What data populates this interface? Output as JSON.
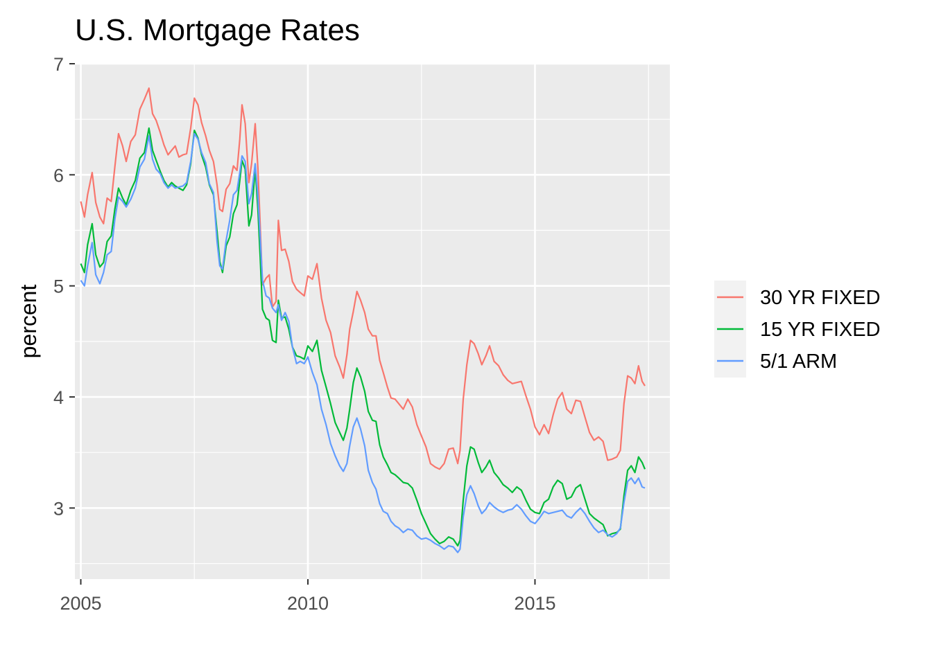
{
  "chart_data": {
    "type": "line",
    "title": "U.S. Mortgage Rates",
    "xlabel": "",
    "ylabel": "percent",
    "xlim": [
      2004.87,
      2017.97
    ],
    "ylim": [
      2.36,
      7.0
    ],
    "grid": true,
    "legend_position": "right",
    "x_ticks": [
      2005,
      2010,
      2015
    ],
    "x_tick_labels": [
      "2005",
      "2010",
      "2015"
    ],
    "y_ticks": [
      3,
      4,
      5,
      6,
      7
    ],
    "y_tick_labels": [
      "3",
      "4",
      "5",
      "6",
      "7"
    ],
    "series": [
      {
        "name": "30 YR FIXED",
        "color": "#F8766D",
        "x": [
          2005.0,
          2005.08,
          2005.15,
          2005.25,
          2005.33,
          2005.42,
          2005.5,
          2005.58,
          2005.67,
          2005.75,
          2005.83,
          2005.92,
          2006.0,
          2006.1,
          2006.2,
          2006.3,
          2006.4,
          2006.5,
          2006.58,
          2006.66,
          2006.75,
          2006.83,
          2006.92,
          2007.0,
          2007.08,
          2007.16,
          2007.25,
          2007.33,
          2007.42,
          2007.5,
          2007.58,
          2007.66,
          2007.75,
          2007.83,
          2007.92,
          2008.0,
          2008.06,
          2008.12,
          2008.2,
          2008.28,
          2008.36,
          2008.44,
          2008.5,
          2008.55,
          2008.62,
          2008.7,
          2008.76,
          2008.84,
          2008.9,
          2008.95,
          2009.0,
          2009.08,
          2009.15,
          2009.22,
          2009.3,
          2009.35,
          2009.42,
          2009.5,
          2009.58,
          2009.66,
          2009.75,
          2009.83,
          2009.92,
          2010.0,
          2010.1,
          2010.2,
          2010.3,
          2010.4,
          2010.5,
          2010.6,
          2010.7,
          2010.78,
          2010.86,
          2010.92,
          2011.0,
          2011.08,
          2011.16,
          2011.25,
          2011.33,
          2011.42,
          2011.5,
          2011.58,
          2011.66,
          2011.75,
          2011.83,
          2011.92,
          2012.0,
          2012.1,
          2012.2,
          2012.3,
          2012.4,
          2012.5,
          2012.6,
          2012.7,
          2012.8,
          2012.9,
          2013.0,
          2013.1,
          2013.2,
          2013.3,
          2013.35,
          2013.42,
          2013.5,
          2013.58,
          2013.66,
          2013.75,
          2013.83,
          2013.92,
          2014.0,
          2014.1,
          2014.2,
          2014.3,
          2014.4,
          2014.5,
          2014.6,
          2014.7,
          2014.8,
          2014.9,
          2015.0,
          2015.1,
          2015.2,
          2015.3,
          2015.4,
          2015.5,
          2015.6,
          2015.7,
          2015.8,
          2015.9,
          2016.0,
          2016.1,
          2016.2,
          2016.3,
          2016.4,
          2016.5,
          2016.6,
          2016.7,
          2016.8,
          2016.88,
          2016.96,
          2017.04,
          2017.12,
          2017.2,
          2017.28,
          2017.36,
          2017.42
        ],
        "y": [
          5.76,
          5.62,
          5.82,
          6.02,
          5.75,
          5.62,
          5.56,
          5.79,
          5.76,
          6.07,
          6.37,
          6.26,
          6.12,
          6.3,
          6.36,
          6.59,
          6.68,
          6.78,
          6.55,
          6.49,
          6.38,
          6.27,
          6.18,
          6.22,
          6.26,
          6.16,
          6.18,
          6.19,
          6.42,
          6.69,
          6.63,
          6.47,
          6.35,
          6.22,
          6.12,
          5.91,
          5.69,
          5.67,
          5.87,
          5.92,
          6.08,
          6.04,
          6.32,
          6.63,
          6.46,
          5.93,
          6.1,
          6.46,
          6.06,
          5.55,
          5.01,
          5.07,
          5.1,
          4.81,
          4.86,
          5.59,
          5.32,
          5.33,
          5.22,
          5.04,
          4.97,
          4.94,
          4.91,
          5.09,
          5.06,
          5.2,
          4.89,
          4.69,
          4.58,
          4.37,
          4.27,
          4.17,
          4.38,
          4.61,
          4.77,
          4.95,
          4.87,
          4.76,
          4.61,
          4.55,
          4.55,
          4.33,
          4.22,
          4.09,
          3.99,
          3.98,
          3.94,
          3.89,
          3.98,
          3.91,
          3.75,
          3.65,
          3.55,
          3.4,
          3.37,
          3.35,
          3.4,
          3.53,
          3.54,
          3.4,
          3.52,
          3.98,
          4.29,
          4.51,
          4.48,
          4.39,
          4.29,
          4.37,
          4.46,
          4.32,
          4.28,
          4.2,
          4.15,
          4.12,
          4.13,
          4.14,
          4.01,
          3.89,
          3.73,
          3.66,
          3.75,
          3.67,
          3.84,
          3.98,
          4.04,
          3.89,
          3.85,
          3.97,
          3.96,
          3.82,
          3.68,
          3.61,
          3.64,
          3.6,
          3.43,
          3.44,
          3.46,
          3.52,
          3.94,
          4.19,
          4.17,
          4.12,
          4.28,
          4.14,
          4.1
        ]
      },
      {
        "name": "15 YR FIXED",
        "color": "#00BA38",
        "x": [
          2005.0,
          2005.08,
          2005.15,
          2005.25,
          2005.33,
          2005.42,
          2005.5,
          2005.58,
          2005.67,
          2005.75,
          2005.83,
          2005.92,
          2006.0,
          2006.1,
          2006.2,
          2006.3,
          2006.4,
          2006.5,
          2006.58,
          2006.66,
          2006.75,
          2006.83,
          2006.92,
          2007.0,
          2007.08,
          2007.16,
          2007.25,
          2007.33,
          2007.42,
          2007.5,
          2007.58,
          2007.66,
          2007.75,
          2007.83,
          2007.92,
          2008.0,
          2008.06,
          2008.12,
          2008.2,
          2008.28,
          2008.36,
          2008.44,
          2008.5,
          2008.55,
          2008.62,
          2008.7,
          2008.76,
          2008.84,
          2008.9,
          2008.95,
          2009.0,
          2009.08,
          2009.15,
          2009.22,
          2009.3,
          2009.35,
          2009.42,
          2009.5,
          2009.58,
          2009.66,
          2009.75,
          2009.83,
          2009.92,
          2010.0,
          2010.1,
          2010.2,
          2010.3,
          2010.4,
          2010.5,
          2010.6,
          2010.7,
          2010.78,
          2010.86,
          2010.92,
          2011.0,
          2011.08,
          2011.16,
          2011.25,
          2011.33,
          2011.42,
          2011.5,
          2011.58,
          2011.66,
          2011.75,
          2011.83,
          2011.92,
          2012.0,
          2012.1,
          2012.2,
          2012.3,
          2012.4,
          2012.5,
          2012.6,
          2012.7,
          2012.8,
          2012.9,
          2013.0,
          2013.1,
          2013.2,
          2013.3,
          2013.35,
          2013.42,
          2013.5,
          2013.58,
          2013.66,
          2013.75,
          2013.83,
          2013.92,
          2014.0,
          2014.1,
          2014.2,
          2014.3,
          2014.4,
          2014.5,
          2014.6,
          2014.7,
          2014.8,
          2014.9,
          2015.0,
          2015.1,
          2015.2,
          2015.3,
          2015.4,
          2015.5,
          2015.6,
          2015.7,
          2015.8,
          2015.9,
          2016.0,
          2016.1,
          2016.2,
          2016.3,
          2016.4,
          2016.5,
          2016.6,
          2016.7,
          2016.8,
          2016.88,
          2016.96,
          2017.04,
          2017.12,
          2017.2,
          2017.28,
          2017.36,
          2017.42
        ],
        "y": [
          5.2,
          5.12,
          5.37,
          5.56,
          5.28,
          5.17,
          5.21,
          5.4,
          5.45,
          5.69,
          5.88,
          5.79,
          5.73,
          5.86,
          5.95,
          6.15,
          6.2,
          6.42,
          6.22,
          6.13,
          6.03,
          5.95,
          5.89,
          5.93,
          5.9,
          5.88,
          5.86,
          5.91,
          6.1,
          6.4,
          6.33,
          6.18,
          6.07,
          5.91,
          5.82,
          5.49,
          5.22,
          5.12,
          5.36,
          5.44,
          5.65,
          5.73,
          5.95,
          6.13,
          6.05,
          5.54,
          5.64,
          6.06,
          5.69,
          5.26,
          4.79,
          4.71,
          4.69,
          4.51,
          4.49,
          4.87,
          4.71,
          4.72,
          4.61,
          4.45,
          4.37,
          4.36,
          4.34,
          4.46,
          4.41,
          4.51,
          4.24,
          4.09,
          3.94,
          3.77,
          3.68,
          3.61,
          3.72,
          3.89,
          4.13,
          4.26,
          4.18,
          4.05,
          3.87,
          3.79,
          3.78,
          3.57,
          3.46,
          3.39,
          3.32,
          3.3,
          3.27,
          3.23,
          3.22,
          3.18,
          3.07,
          2.95,
          2.86,
          2.77,
          2.72,
          2.68,
          2.7,
          2.74,
          2.72,
          2.66,
          2.71,
          3.07,
          3.38,
          3.55,
          3.53,
          3.41,
          3.32,
          3.37,
          3.43,
          3.32,
          3.27,
          3.21,
          3.18,
          3.14,
          3.19,
          3.16,
          3.07,
          2.99,
          2.96,
          2.95,
          3.05,
          3.08,
          3.19,
          3.25,
          3.22,
          3.08,
          3.1,
          3.18,
          3.21,
          3.08,
          2.95,
          2.91,
          2.88,
          2.85,
          2.75,
          2.77,
          2.78,
          2.81,
          3.11,
          3.34,
          3.38,
          3.32,
          3.46,
          3.41,
          3.35
        ]
      },
      {
        "name": "5/1 ARM",
        "color": "#619CFF",
        "x": [
          2005.0,
          2005.08,
          2005.15,
          2005.25,
          2005.33,
          2005.42,
          2005.5,
          2005.58,
          2005.67,
          2005.75,
          2005.83,
          2005.92,
          2006.0,
          2006.1,
          2006.2,
          2006.3,
          2006.4,
          2006.5,
          2006.58,
          2006.66,
          2006.75,
          2006.83,
          2006.92,
          2007.0,
          2007.08,
          2007.16,
          2007.25,
          2007.33,
          2007.42,
          2007.5,
          2007.58,
          2007.66,
          2007.75,
          2007.83,
          2007.92,
          2008.0,
          2008.06,
          2008.12,
          2008.2,
          2008.28,
          2008.36,
          2008.44,
          2008.5,
          2008.55,
          2008.62,
          2008.7,
          2008.76,
          2008.84,
          2008.9,
          2008.95,
          2009.0,
          2009.08,
          2009.15,
          2009.22,
          2009.3,
          2009.35,
          2009.42,
          2009.5,
          2009.58,
          2009.66,
          2009.75,
          2009.83,
          2009.92,
          2010.0,
          2010.1,
          2010.2,
          2010.3,
          2010.4,
          2010.5,
          2010.6,
          2010.7,
          2010.78,
          2010.86,
          2010.92,
          2011.0,
          2011.08,
          2011.16,
          2011.25,
          2011.33,
          2011.42,
          2011.5,
          2011.58,
          2011.66,
          2011.75,
          2011.83,
          2011.92,
          2012.0,
          2012.1,
          2012.2,
          2012.3,
          2012.4,
          2012.5,
          2012.6,
          2012.7,
          2012.8,
          2012.9,
          2013.0,
          2013.1,
          2013.2,
          2013.3,
          2013.35,
          2013.42,
          2013.5,
          2013.58,
          2013.66,
          2013.75,
          2013.83,
          2013.92,
          2014.0,
          2014.1,
          2014.2,
          2014.3,
          2014.4,
          2014.5,
          2014.6,
          2014.7,
          2014.8,
          2014.9,
          2015.0,
          2015.1,
          2015.2,
          2015.3,
          2015.4,
          2015.5,
          2015.6,
          2015.7,
          2015.8,
          2015.9,
          2016.0,
          2016.1,
          2016.2,
          2016.3,
          2016.4,
          2016.5,
          2016.6,
          2016.7,
          2016.8,
          2016.88,
          2016.96,
          2017.04,
          2017.12,
          2017.2,
          2017.28,
          2017.36,
          2017.42
        ],
        "y": [
          5.05,
          5.0,
          5.18,
          5.39,
          5.1,
          5.02,
          5.12,
          5.28,
          5.31,
          5.6,
          5.8,
          5.76,
          5.71,
          5.78,
          5.88,
          6.07,
          6.14,
          6.35,
          6.14,
          6.05,
          6.01,
          5.93,
          5.88,
          5.91,
          5.88,
          5.89,
          5.9,
          5.93,
          6.12,
          6.37,
          6.32,
          6.2,
          6.11,
          5.92,
          5.84,
          5.4,
          5.18,
          5.15,
          5.41,
          5.59,
          5.82,
          5.86,
          6.02,
          6.17,
          6.12,
          5.74,
          5.83,
          6.1,
          5.81,
          5.44,
          5.05,
          4.91,
          4.89,
          4.8,
          4.76,
          4.83,
          4.69,
          4.76,
          4.68,
          4.45,
          4.3,
          4.32,
          4.3,
          4.36,
          4.22,
          4.11,
          3.89,
          3.75,
          3.58,
          3.47,
          3.38,
          3.33,
          3.4,
          3.56,
          3.73,
          3.81,
          3.71,
          3.56,
          3.34,
          3.23,
          3.17,
          3.04,
          2.97,
          2.95,
          2.88,
          2.84,
          2.82,
          2.78,
          2.81,
          2.8,
          2.75,
          2.72,
          2.73,
          2.71,
          2.68,
          2.66,
          2.63,
          2.66,
          2.65,
          2.6,
          2.63,
          2.92,
          3.12,
          3.2,
          3.13,
          3.02,
          2.95,
          2.99,
          3.05,
          3.01,
          2.98,
          2.96,
          2.98,
          2.99,
          3.03,
          2.99,
          2.93,
          2.88,
          2.86,
          2.91,
          2.97,
          2.95,
          2.96,
          2.97,
          2.98,
          2.93,
          2.91,
          2.96,
          3.0,
          2.95,
          2.88,
          2.82,
          2.78,
          2.8,
          2.76,
          2.74,
          2.77,
          2.82,
          3.05,
          3.24,
          3.27,
          3.22,
          3.27,
          3.19,
          3.18
        ]
      }
    ]
  }
}
